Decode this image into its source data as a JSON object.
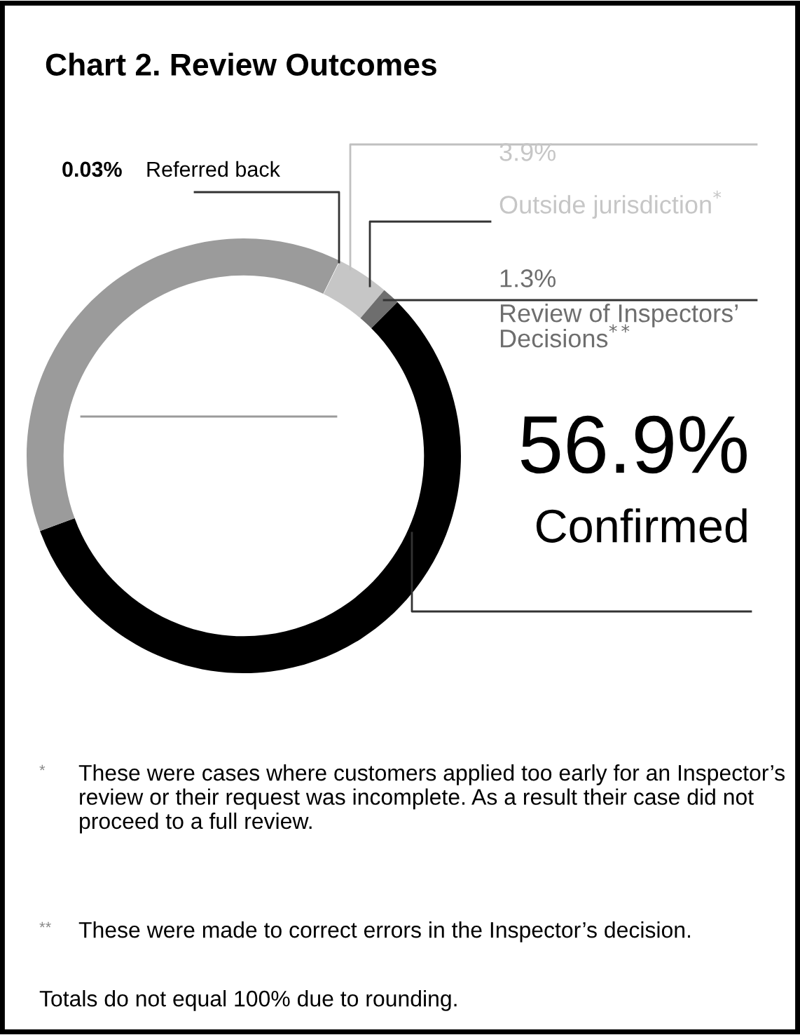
{
  "chart_data": {
    "type": "donut",
    "title": "Chart 2. Review Outcomes",
    "categories": [
      "Confirmed",
      null,
      "Referred back",
      "Outside jurisdiction$^{*}$",
      "Review of Inspectors’ Decisions$^{**}$"
    ],
    "values": [
      56.9,
      37.9,
      0.03,
      3.9,
      1.3
    ],
    "colors": [
      "#000000",
      "#9b9b9b",
      "#ffffff",
      "#c6c6c6",
      "#6e6e6e"
    ],
    "value_labels": [
      "56.9%",
      null,
      "0.03%",
      "3.9%",
      "1.3%"
    ],
    "annotations": [
      "* These were cases where customers applied too early for an Inspector’s review or their request was incomplete. As a result their case did not proceed to a full review.",
      "** These were made to correct errors in the Inspector’s decision.",
      "Totals do not equal 100% due to rounding."
    ]
  }
}
